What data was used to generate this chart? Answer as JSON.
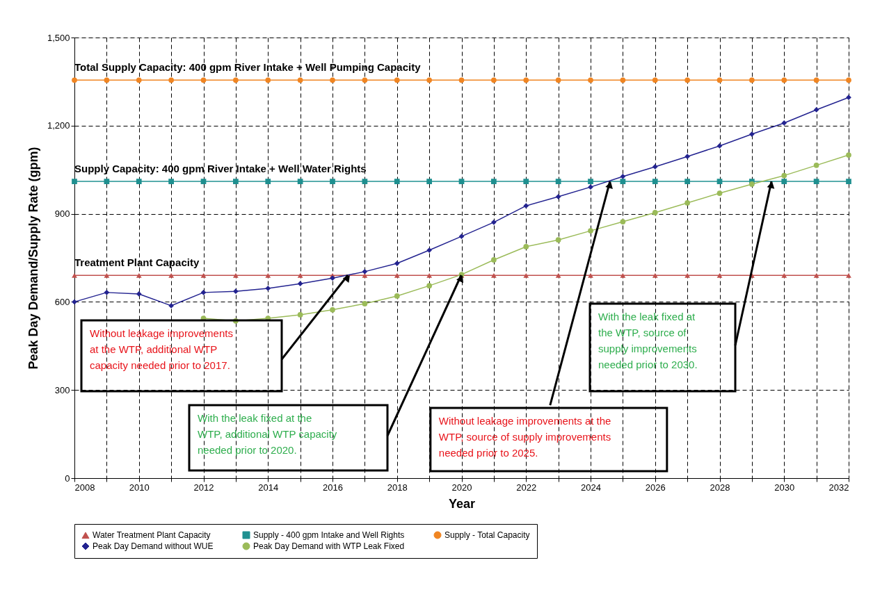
{
  "chart_data": {
    "type": "line",
    "xlabel": "Year",
    "ylabel": "Peak Day Demand/Supply Rate (gpm)",
    "x": [
      2008,
      2009,
      2010,
      2011,
      2012,
      2013,
      2014,
      2015,
      2016,
      2017,
      2018,
      2019,
      2020,
      2021,
      2022,
      2023,
      2024,
      2025,
      2026,
      2027,
      2028,
      2029,
      2030,
      2031,
      2032
    ],
    "series": [
      {
        "name": "Water Treatment Plant Capacity",
        "color": "#c0504d",
        "marker": "triangle",
        "values": [
          690,
          690,
          690,
          690,
          690,
          690,
          690,
          690,
          690,
          690,
          690,
          690,
          690,
          690,
          690,
          690,
          690,
          690,
          690,
          690,
          690,
          690,
          690,
          690,
          690
        ]
      },
      {
        "name": "Supply - 400 gpm Intake and Well Rights",
        "color": "#1f9090",
        "marker": "square",
        "values": [
          1010,
          1010,
          1010,
          1010,
          1010,
          1010,
          1010,
          1010,
          1010,
          1010,
          1010,
          1010,
          1010,
          1010,
          1010,
          1010,
          1010,
          1010,
          1010,
          1010,
          1010,
          1010,
          1010,
          1010,
          1010
        ]
      },
      {
        "name": "Supply - Total Capacity",
        "color": "#f08522",
        "marker": "circle",
        "values": [
          1355,
          1355,
          1355,
          1355,
          1355,
          1355,
          1355,
          1355,
          1355,
          1355,
          1355,
          1355,
          1355,
          1355,
          1355,
          1355,
          1355,
          1355,
          1355,
          1355,
          1355,
          1355,
          1355,
          1355,
          1355
        ]
      },
      {
        "name": "Peak Day Demand without WUE",
        "color": "#232390",
        "marker": "diamond",
        "values": [
          600,
          632,
          627,
          587,
          632,
          636,
          646,
          662,
          681,
          703,
          731,
          776,
          823,
          871,
          927,
          958,
          991,
          1027,
          1060,
          1095,
          1131,
          1171,
          1209,
          1254,
          1296
        ]
      },
      {
        "name": "Peak Day Demand with WTP Leak Fixed",
        "color": "#9bbb59",
        "marker": "circle",
        "x": [
          2012,
          2013,
          2014,
          2015,
          2016,
          2017,
          2018,
          2019,
          2020,
          2021,
          2022,
          2023,
          2024,
          2025,
          2026,
          2027,
          2028,
          2029,
          2030,
          2031,
          2032
        ],
        "values": [
          544,
          535,
          544,
          556,
          573,
          594,
          620,
          655,
          693,
          743,
          788,
          811,
          842,
          873,
          904,
          937,
          970,
          1001,
          1030,
          1065,
          1100
        ]
      }
    ],
    "xlim": [
      2008,
      2032
    ],
    "xticks": [
      2008,
      {
        "value": 2009,
        "label": null
      },
      2010,
      {
        "value": 2011,
        "label": null
      },
      2012,
      {
        "value": 2013,
        "label": null
      },
      2014,
      {
        "value": 2015,
        "label": null
      },
      2016,
      {
        "value": 2017,
        "label": null
      },
      2018,
      {
        "value": 2019,
        "label": null
      },
      2020,
      {
        "value": 2021,
        "label": null
      },
      2022,
      {
        "value": 2023,
        "label": null
      },
      2024,
      {
        "value": 2025,
        "label": null
      },
      2026,
      {
        "value": 2027,
        "label": null
      },
      2028,
      {
        "value": 2029,
        "label": null
      },
      2030,
      {
        "value": 2031,
        "label": null
      },
      2032
    ],
    "ylim": [
      0,
      1500
    ],
    "yticks": [
      0,
      300,
      600,
      900,
      {
        "value": 1200,
        "label": "1,200"
      },
      {
        "value": 1500,
        "label": "1,500"
      }
    ],
    "grid": true,
    "legend": "bottom",
    "line_style": "solid",
    "annotations": [
      "Total Supply Capacity: 400 gpm River Intake + Well Pumping Capacity",
      "Supply Capacity: 400 gpm River Intake + Well Water Rights",
      "Treatment Plant Capacity",
      "Without leakage improvements at the WTP, additional WTP capacity needed prior to 2017.",
      "With the leak fixed at the WTP, additional WTP capacity needed prior to 2020.",
      {
        "text": "Without leakage improvements at the WTP, source of supply improvements needed prior to 2025.",
        "x": 2024.6,
        "y": 1010
      },
      "With the leak fixed at the WTP, source of supply improvements needed prior to 2030."
    ]
  }
}
